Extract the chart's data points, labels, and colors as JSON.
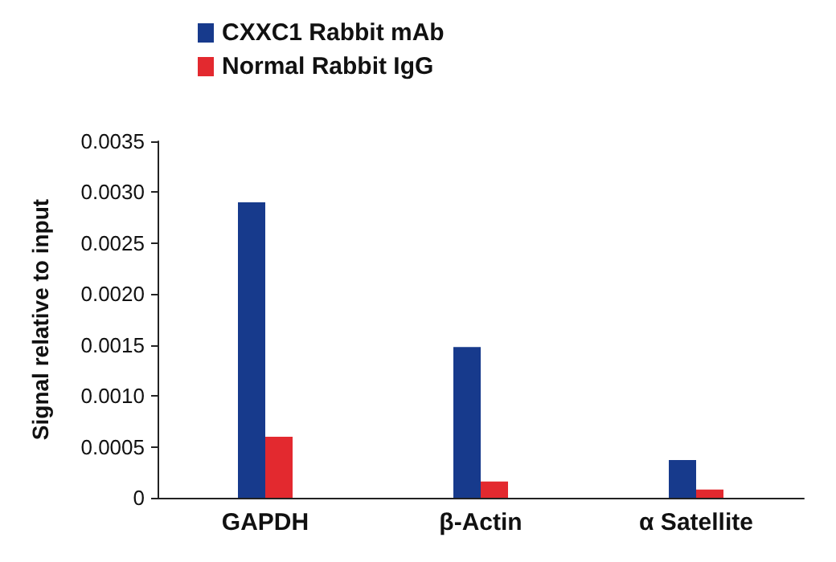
{
  "chart_data": {
    "type": "bar",
    "ylabel": "Signal relative to input",
    "categories": [
      "GAPDH",
      "β-Actin",
      "α Satellite"
    ],
    "series": [
      {
        "name": "CXXC1 Rabbit mAb",
        "color": "#173a8c",
        "values": [
          0.0029,
          0.00148,
          0.00037
        ]
      },
      {
        "name": "Normal Rabbit IgG",
        "color": "#e3292f",
        "values": [
          0.0006,
          0.00016,
          8e-05
        ]
      }
    ],
    "ylim": [
      0,
      0.0035
    ],
    "yticks": [
      0,
      {
        "value": 0.0005,
        "label": "0.0005"
      },
      {
        "value": 0.001,
        "label": "0.0010"
      },
      {
        "value": 0.0015,
        "label": "0.0015"
      },
      {
        "value": 0.002,
        "label": "0.0020"
      },
      {
        "value": 0.0025,
        "label": "0.0025"
      },
      {
        "value": 0.003,
        "label": "0.0030"
      },
      {
        "value": 0.0035,
        "label": "0.0035"
      }
    ],
    "grid": false,
    "legend": "top left"
  }
}
